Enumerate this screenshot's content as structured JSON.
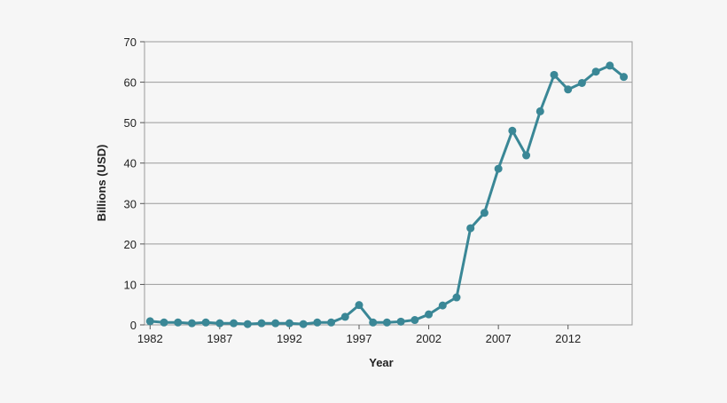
{
  "chart_data": {
    "type": "line",
    "title": "",
    "xlabel": "Year",
    "ylabel": "Billions (USD)",
    "xlim": [
      1981.6,
      2016.6
    ],
    "ylim": [
      0,
      70
    ],
    "x_ticks": [
      1982,
      1987,
      1992,
      1997,
      2002,
      2007,
      2012
    ],
    "y_ticks": [
      0,
      10,
      20,
      30,
      40,
      50,
      60,
      70
    ],
    "grid": true,
    "line_color": "#3a8796",
    "series": [
      {
        "x": [
          1982,
          1983,
          1984,
          1985,
          1986,
          1987,
          1988,
          1989,
          1990,
          1991,
          1992,
          1993,
          1994,
          1995,
          1996,
          1997,
          1998,
          1999,
          2000,
          2001,
          2002,
          2003,
          2004,
          2005,
          2006,
          2007,
          2008,
          2009,
          2010,
          2011,
          2012,
          2013,
          2014,
          2015,
          2016
        ],
        "values": [
          0.9,
          0.6,
          0.6,
          0.4,
          0.6,
          0.4,
          0.4,
          0.2,
          0.4,
          0.4,
          0.4,
          0.2,
          0.6,
          0.6,
          2.0,
          4.9,
          0.6,
          0.6,
          0.8,
          1.2,
          2.6,
          4.8,
          6.8,
          23.9,
          27.7,
          38.6,
          48.0,
          41.9,
          52.8,
          61.8,
          58.2,
          59.8,
          62.6,
          64.1,
          61.3
        ]
      }
    ]
  }
}
